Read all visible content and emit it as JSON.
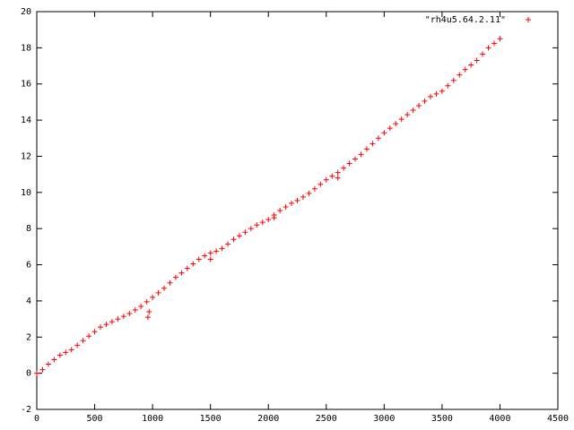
{
  "chart_data": {
    "type": "scatter",
    "series": [
      {
        "name": "\"rh4u5.64.2.11\"",
        "color": "#ff0000",
        "x": [
          0,
          50,
          100,
          150,
          200,
          250,
          300,
          350,
          400,
          450,
          500,
          550,
          600,
          650,
          700,
          750,
          800,
          850,
          900,
          950,
          1000,
          1050,
          1100,
          1150,
          1200,
          1250,
          1300,
          1350,
          1400,
          1450,
          1500,
          1550,
          1600,
          1650,
          1700,
          1750,
          1800,
          1850,
          1900,
          1950,
          2000,
          2050,
          2100,
          2150,
          2200,
          2250,
          2300,
          2350,
          2400,
          2450,
          2500,
          2550,
          2600,
          2650,
          2700,
          2750,
          2800,
          2850,
          2900,
          2950,
          3000,
          3050,
          3100,
          3150,
          3200,
          3250,
          3300,
          3350,
          3400,
          3450,
          3500,
          3550,
          3600,
          3650,
          3700,
          3750,
          3800,
          3850,
          3900,
          3950,
          4000,
          960,
          970,
          1500,
          2050,
          2600
        ],
        "values": [
          0,
          0.2,
          0.5,
          0.75,
          1.0,
          1.15,
          1.3,
          1.55,
          1.8,
          2.05,
          2.3,
          2.55,
          2.7,
          2.85,
          3.0,
          3.15,
          3.3,
          3.5,
          3.7,
          3.95,
          4.2,
          4.45,
          4.7,
          5.0,
          5.3,
          5.55,
          5.8,
          6.05,
          6.3,
          6.5,
          6.65,
          6.75,
          6.9,
          7.15,
          7.4,
          7.6,
          7.8,
          8.0,
          8.2,
          8.35,
          8.5,
          8.75,
          9.0,
          9.2,
          9.4,
          9.55,
          9.75,
          9.95,
          10.2,
          10.45,
          10.7,
          10.9,
          11.1,
          11.35,
          11.6,
          11.85,
          12.1,
          12.4,
          12.7,
          13.0,
          13.3,
          13.55,
          13.8,
          14.05,
          14.3,
          14.55,
          14.8,
          15.05,
          15.3,
          15.45,
          15.6,
          15.9,
          16.2,
          16.5,
          16.8,
          17.05,
          17.3,
          17.65,
          18.0,
          18.25,
          18.5,
          3.1,
          3.4,
          6.3,
          8.6,
          10.8
        ]
      }
    ],
    "xlim": [
      0,
      4500
    ],
    "xticks": [
      0,
      500,
      1000,
      1500,
      2000,
      2500,
      3000,
      3500,
      4000,
      4500
    ],
    "ylim": [
      -2,
      20
    ],
    "yticks": [
      -2,
      0,
      2,
      4,
      6,
      8,
      10,
      12,
      14,
      16,
      18,
      20
    ],
    "legend": "top-right"
  }
}
